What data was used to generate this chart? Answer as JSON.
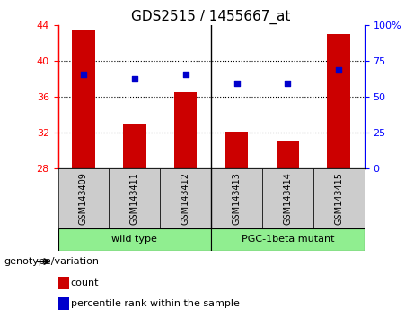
{
  "title": "GDS2515 / 1455667_at",
  "samples": [
    "GSM143409",
    "GSM143411",
    "GSM143412",
    "GSM143413",
    "GSM143414",
    "GSM143415"
  ],
  "bar_values": [
    43.5,
    33.0,
    36.5,
    32.1,
    31.0,
    43.0
  ],
  "percentile_values": [
    38.5,
    38.0,
    38.5,
    37.5,
    37.5,
    39.0
  ],
  "ymin": 28,
  "ymax": 44,
  "yticks_left": [
    28,
    32,
    36,
    40,
    44
  ],
  "yticks_right_labels": [
    "0",
    "25",
    "50",
    "75",
    "100%"
  ],
  "yticks_right_vals": [
    28,
    32,
    36,
    40,
    44
  ],
  "bar_color": "#cc0000",
  "dot_color": "#0000cc",
  "bar_width": 0.45,
  "group_wt_indices": [
    0,
    1,
    2
  ],
  "group_mut_indices": [
    3,
    4,
    5
  ],
  "group_wt_label": "wild type",
  "group_mut_label": "PGC-1beta mutant",
  "group_color": "#90ee90",
  "sample_box_color": "#cccccc",
  "legend_count_label": "count",
  "legend_pct_label": "percentile rank within the sample",
  "genotype_label": "genotype/variation",
  "title_fontsize": 11,
  "tick_fontsize": 8,
  "sample_fontsize": 7,
  "group_fontsize": 8,
  "legend_fontsize": 8
}
